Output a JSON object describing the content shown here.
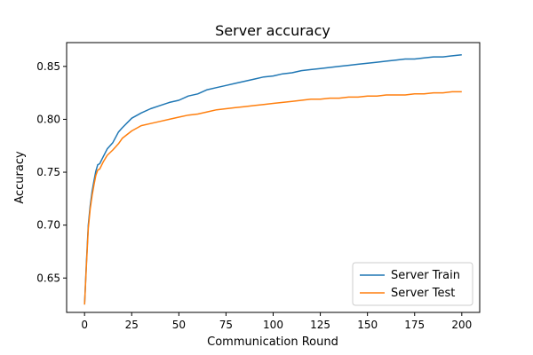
{
  "chart_data": {
    "type": "line",
    "title": "Server accuracy",
    "xlabel": "Communication Round",
    "ylabel": "Accuracy",
    "xlim": [
      -9.5,
      209.5
    ],
    "ylim": [
      0.6175,
      0.8725
    ],
    "xticks": [
      0,
      25,
      50,
      75,
      100,
      125,
      150,
      175,
      200
    ],
    "yticks": [
      0.65,
      0.7,
      0.75,
      0.8,
      0.85
    ],
    "ytick_labels": [
      "0.65",
      "0.70",
      "0.75",
      "0.80",
      "0.85"
    ],
    "grid": false,
    "legend_position": "lower-right",
    "series": [
      {
        "name": "Server Train",
        "color": "#1f77b4",
        "x": [
          0,
          1,
          2,
          3,
          4,
          5,
          6,
          7,
          8,
          10,
          12,
          15,
          18,
          20,
          25,
          30,
          35,
          40,
          45,
          50,
          55,
          60,
          65,
          70,
          75,
          80,
          85,
          90,
          95,
          100,
          105,
          110,
          115,
          120,
          125,
          130,
          135,
          140,
          145,
          150,
          155,
          160,
          165,
          170,
          175,
          180,
          185,
          190,
          195,
          200
        ],
        "values": [
          0.625,
          0.665,
          0.7,
          0.718,
          0.732,
          0.742,
          0.751,
          0.757,
          0.758,
          0.765,
          0.772,
          0.778,
          0.788,
          0.792,
          0.801,
          0.806,
          0.81,
          0.813,
          0.816,
          0.818,
          0.822,
          0.824,
          0.828,
          0.83,
          0.832,
          0.834,
          0.836,
          0.838,
          0.84,
          0.841,
          0.843,
          0.844,
          0.846,
          0.847,
          0.848,
          0.849,
          0.85,
          0.851,
          0.852,
          0.853,
          0.854,
          0.855,
          0.856,
          0.857,
          0.857,
          0.858,
          0.859,
          0.859,
          0.86,
          0.861
        ]
      },
      {
        "name": "Server Test",
        "color": "#ff7f0e",
        "x": [
          0,
          1,
          2,
          3,
          4,
          5,
          6,
          7,
          8,
          10,
          12,
          15,
          18,
          20,
          25,
          30,
          35,
          40,
          45,
          50,
          55,
          60,
          65,
          70,
          75,
          80,
          85,
          90,
          95,
          100,
          105,
          110,
          115,
          120,
          125,
          130,
          135,
          140,
          145,
          150,
          155,
          160,
          165,
          170,
          175,
          180,
          185,
          190,
          195,
          200
        ],
        "values": [
          0.625,
          0.662,
          0.697,
          0.715,
          0.728,
          0.738,
          0.747,
          0.752,
          0.753,
          0.76,
          0.766,
          0.771,
          0.777,
          0.782,
          0.789,
          0.794,
          0.796,
          0.798,
          0.8,
          0.802,
          0.804,
          0.805,
          0.807,
          0.809,
          0.81,
          0.811,
          0.812,
          0.813,
          0.814,
          0.815,
          0.816,
          0.817,
          0.818,
          0.819,
          0.819,
          0.82,
          0.82,
          0.821,
          0.821,
          0.822,
          0.822,
          0.823,
          0.823,
          0.823,
          0.824,
          0.824,
          0.825,
          0.825,
          0.826,
          0.826
        ]
      }
    ]
  }
}
